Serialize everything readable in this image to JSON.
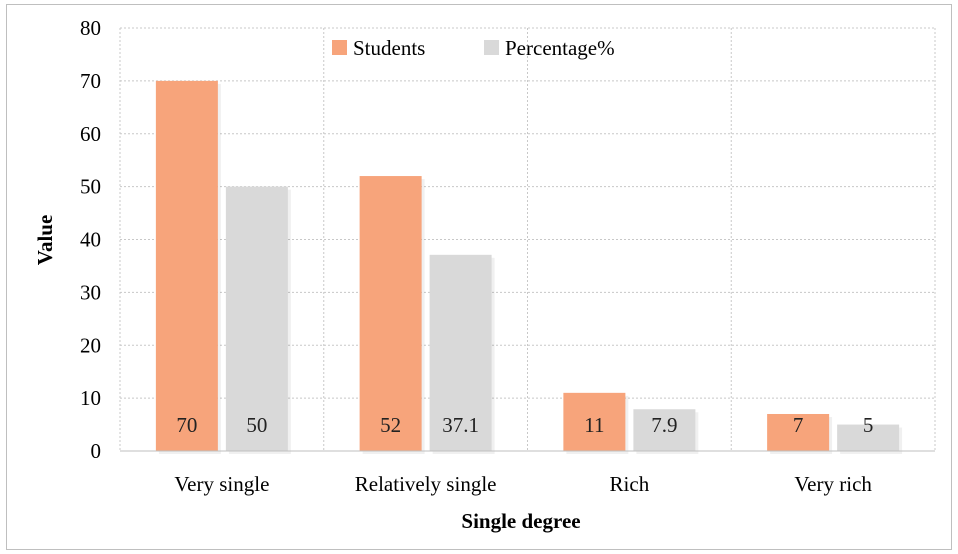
{
  "chart_data": {
    "type": "bar",
    "title": "",
    "xlabel": "Single degree",
    "ylabel": "Value",
    "categories": [
      "Very single",
      "Relatively single",
      "Rich",
      "Very rich"
    ],
    "series": [
      {
        "name": "Students",
        "values": [
          70,
          52,
          11,
          7
        ],
        "labels": [
          "70",
          "52",
          "11",
          "7"
        ],
        "color": "#f7a47b"
      },
      {
        "name": "Percentage%",
        "values": [
          50,
          37.1,
          7.9,
          5
        ],
        "labels": [
          "50",
          "37.1",
          "7.9",
          "5"
        ],
        "color": "#d9d9d9"
      }
    ],
    "ylim": [
      0,
      80
    ],
    "yticks": [
      "0",
      "10",
      "20",
      "30",
      "40",
      "50",
      "60",
      "70",
      "80"
    ],
    "grid": true,
    "legend": "top-center"
  }
}
